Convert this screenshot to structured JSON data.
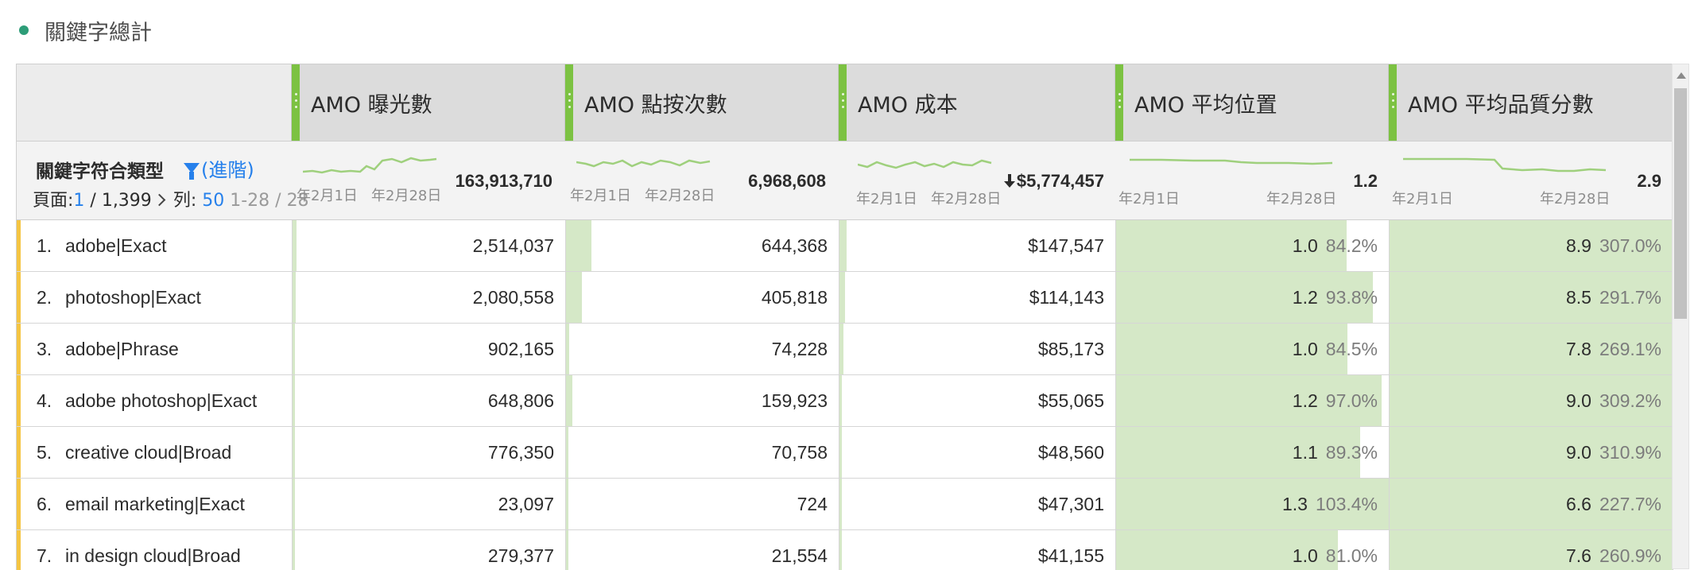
{
  "panel": {
    "title": "關鍵字總計"
  },
  "dimension": {
    "name": "關鍵字符合類型",
    "filter_link": "(進階)",
    "pager": {
      "page_label": "頁面:",
      "page_current": "1",
      "page_total": " / 1,399",
      "rows_label": "列:",
      "rows_value": "50",
      "rows_range": "1-28 / 28"
    }
  },
  "sparkline_labels": {
    "start": "年2月1日",
    "end": "年2月28日"
  },
  "columns": [
    {
      "label": "AMO 曝光數",
      "total": "163,913,710"
    },
    {
      "label": "AMO 點按次數",
      "total": "6,968,608"
    },
    {
      "label": "AMO 成本",
      "total": "$5,774,457",
      "sorted": "descending"
    },
    {
      "label": "AMO 平均位置",
      "total": "1.2"
    },
    {
      "label": "AMO 平均品質分數",
      "total": "2.9"
    }
  ],
  "rows": [
    {
      "num": "1.",
      "label": "adobe|Exact",
      "cells": [
        {
          "value": "2,514,037",
          "bar": 0.015
        },
        {
          "value": "644,368",
          "bar": 0.092
        },
        {
          "value": "$147,547",
          "bar": 0.026
        },
        {
          "value": "1.0",
          "pct": "84.2%",
          "bar": 0.842
        },
        {
          "value": "8.9",
          "pct": "307.0%",
          "bar": 1.0
        }
      ]
    },
    {
      "num": "2.",
      "label": "photoshop|Exact",
      "cells": [
        {
          "value": "2,080,558",
          "bar": 0.013
        },
        {
          "value": "405,818",
          "bar": 0.058
        },
        {
          "value": "$114,143",
          "bar": 0.02
        },
        {
          "value": "1.2",
          "pct": "93.8%",
          "bar": 0.938
        },
        {
          "value": "8.5",
          "pct": "291.7%",
          "bar": 1.0
        }
      ]
    },
    {
      "num": "3.",
      "label": "adobe|Phrase",
      "cells": [
        {
          "value": "902,165",
          "bar": 0.006
        },
        {
          "value": "74,228",
          "bar": 0.011
        },
        {
          "value": "$85,173",
          "bar": 0.015
        },
        {
          "value": "1.0",
          "pct": "84.5%",
          "bar": 0.845
        },
        {
          "value": "7.8",
          "pct": "269.1%",
          "bar": 1.0
        }
      ]
    },
    {
      "num": "4.",
      "label": "adobe photoshop|Exact",
      "cells": [
        {
          "value": "648,806",
          "bar": 0.004
        },
        {
          "value": "159,923",
          "bar": 0.023
        },
        {
          "value": "$55,065",
          "bar": 0.01
        },
        {
          "value": "1.2",
          "pct": "97.0%",
          "bar": 0.97
        },
        {
          "value": "9.0",
          "pct": "309.2%",
          "bar": 1.0
        }
      ]
    },
    {
      "num": "5.",
      "label": "creative cloud|Broad",
      "cells": [
        {
          "value": "776,350",
          "bar": 0.005
        },
        {
          "value": "70,758",
          "bar": 0.01
        },
        {
          "value": "$48,560",
          "bar": 0.008
        },
        {
          "value": "1.1",
          "pct": "89.3%",
          "bar": 0.893
        },
        {
          "value": "9.0",
          "pct": "310.9%",
          "bar": 1.0
        }
      ]
    },
    {
      "num": "6.",
      "label": "email marketing|Exact",
      "cells": [
        {
          "value": "23,097",
          "bar": 0.0
        },
        {
          "value": "724",
          "bar": 0.0
        },
        {
          "value": "$47,301",
          "bar": 0.008
        },
        {
          "value": "1.3",
          "pct": "103.4%",
          "bar": 1.0
        },
        {
          "value": "6.6",
          "pct": "227.7%",
          "bar": 1.0
        }
      ]
    },
    {
      "num": "7.",
      "label": "in design cloud|Broad",
      "cells": [
        {
          "value": "279,377",
          "bar": 0.002
        },
        {
          "value": "21,554",
          "bar": 0.003
        },
        {
          "value": "$41,155",
          "bar": 0.007
        },
        {
          "value": "1.0",
          "pct": "81.0%",
          "bar": 0.81
        },
        {
          "value": "7.6",
          "pct": "260.9%",
          "bar": 1.0
        }
      ]
    }
  ]
}
